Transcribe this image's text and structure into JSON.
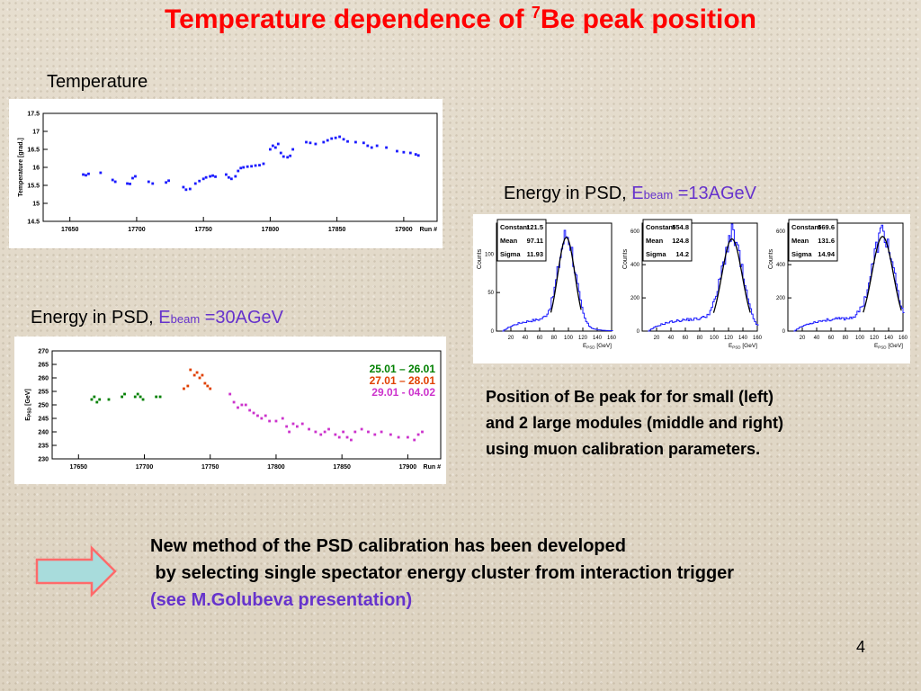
{
  "slide": {
    "title_pre": "Temperature dependence of  ",
    "title_sup": "7",
    "title_post": "Be peak position",
    "page_number": "4"
  },
  "labels": {
    "temperature": "Temperature",
    "psd13_prefix": "Energy in PSD, ",
    "psd13_E": "E",
    "psd13_sub": "beam",
    "psd13_val": " =13AGeV",
    "psd30_prefix": "Energy in PSD, ",
    "psd30_E": "E",
    "psd30_sub": "beam",
    "psd30_val": " =30AGeV"
  },
  "caption": {
    "line1": "Position of Be peak for for  small (left)",
    "line2": "and 2 large modules (middle and right)",
    "line3": "using muon calibration parameters."
  },
  "method": {
    "line1": "New method of the PSD calibration has been developed",
    "line2": " by selecting single spectator energy cluster from interaction trigger",
    "line3": "(see M.Golubeva presentation)"
  },
  "colors": {
    "title": "#ff0000",
    "beam_label": "#6633cc",
    "temp_points": "#1a1aff",
    "series_green": "#008000",
    "series_orange": "#e04000",
    "series_magenta": "#cc33cc",
    "arrow_fill": "#a8dcdc",
    "arrow_stroke": "#ff6a6a"
  },
  "chart_data": [
    {
      "type": "scatter",
      "xlabel": "Run #",
      "ylabel": "Temperature [grad.]",
      "xlim": [
        17630,
        17925
      ],
      "ylim": [
        14.5,
        17.5
      ],
      "xticks": [
        "17650",
        "17700",
        "17750",
        "17800",
        "17850",
        "17900"
      ],
      "yticks": [
        "14.5",
        "15",
        "15.5",
        "16",
        "16.5",
        "17",
        "17.5"
      ],
      "points": [
        [
          17660,
          15.8
        ],
        [
          17662,
          15.78
        ],
        [
          17664,
          15.82
        ],
        [
          17673,
          15.85
        ],
        [
          17682,
          15.65
        ],
        [
          17684,
          15.6
        ],
        [
          17693,
          15.55
        ],
        [
          17695,
          15.54
        ],
        [
          17697,
          15.7
        ],
        [
          17699,
          15.75
        ],
        [
          17709,
          15.6
        ],
        [
          17712,
          15.55
        ],
        [
          17722,
          15.58
        ],
        [
          17724,
          15.63
        ],
        [
          17735,
          15.45
        ],
        [
          17737,
          15.38
        ],
        [
          17740,
          15.4
        ],
        [
          17744,
          15.55
        ],
        [
          17747,
          15.62
        ],
        [
          17750,
          15.68
        ],
        [
          17752,
          15.72
        ],
        [
          17755,
          15.75
        ],
        [
          17757,
          15.77
        ],
        [
          17759,
          15.74
        ],
        [
          17767,
          15.8
        ],
        [
          17769,
          15.72
        ],
        [
          17771,
          15.68
        ],
        [
          17774,
          15.75
        ],
        [
          17776,
          15.9
        ],
        [
          17778,
          15.98
        ],
        [
          17780,
          16.0
        ],
        [
          17783,
          16.02
        ],
        [
          17786,
          16.03
        ],
        [
          17789,
          16.05
        ],
        [
          17792,
          16.06
        ],
        [
          17795,
          16.1
        ],
        [
          17800,
          16.5
        ],
        [
          17802,
          16.6
        ],
        [
          17804,
          16.55
        ],
        [
          17806,
          16.65
        ],
        [
          17808,
          16.4
        ],
        [
          17810,
          16.3
        ],
        [
          17813,
          16.28
        ],
        [
          17815,
          16.32
        ],
        [
          17817,
          16.5
        ],
        [
          17827,
          16.7
        ],
        [
          17830,
          16.68
        ],
        [
          17834,
          16.65
        ],
        [
          17840,
          16.7
        ],
        [
          17843,
          16.75
        ],
        [
          17846,
          16.8
        ],
        [
          17849,
          16.82
        ],
        [
          17852,
          16.85
        ],
        [
          17855,
          16.78
        ],
        [
          17858,
          16.72
        ],
        [
          17864,
          16.7
        ],
        [
          17870,
          16.68
        ],
        [
          17873,
          16.6
        ],
        [
          17876,
          16.55
        ],
        [
          17880,
          16.6
        ],
        [
          17887,
          16.55
        ],
        [
          17895,
          16.45
        ],
        [
          17900,
          16.42
        ],
        [
          17905,
          16.4
        ],
        [
          17909,
          16.36
        ],
        [
          17911,
          16.33
        ]
      ]
    },
    {
      "type": "histogram",
      "xlabel": "E_PSD [GeV]",
      "ylabel": "Counts",
      "xticks": [
        "20",
        "40",
        "60",
        "80",
        "100",
        "120",
        "140",
        "160"
      ],
      "yticks": [
        "0",
        "50",
        "100"
      ],
      "xlim": [
        0,
        160
      ],
      "ylim": [
        0,
        140
      ],
      "stats": [
        [
          "Constant",
          "121.5"
        ],
        [
          "Mean",
          "97.11"
        ],
        [
          "Sigma",
          "11.93"
        ]
      ],
      "peak": 97.11,
      "sigma": 11.93,
      "amplitude": 121.5
    },
    {
      "type": "histogram",
      "xlabel": "E_PSD [GeV]",
      "ylabel": "Counts",
      "xticks": [
        "20",
        "40",
        "60",
        "80",
        "100",
        "120",
        "140",
        "160"
      ],
      "yticks": [
        "0",
        "200",
        "400",
        "600"
      ],
      "xlim": [
        0,
        160
      ],
      "ylim": [
        0,
        650
      ],
      "stats": [
        [
          "Constant",
          "554.8"
        ],
        [
          "Mean",
          "124.8"
        ],
        [
          "Sigma",
          "14.2"
        ]
      ],
      "peak": 124.8,
      "sigma": 14.2,
      "amplitude": 554.8
    },
    {
      "type": "histogram",
      "xlabel": "E_PSD [GeV]",
      "ylabel": "Counts",
      "xticks": [
        "20",
        "40",
        "60",
        "80",
        "100",
        "120",
        "140",
        "160"
      ],
      "yticks": [
        "0",
        "200",
        "400",
        "600"
      ],
      "xlim": [
        0,
        160
      ],
      "ylim": [
        0,
        650
      ],
      "stats": [
        [
          "Constant",
          "569.6"
        ],
        [
          "Mean",
          "131.6"
        ],
        [
          "Sigma",
          "14.94"
        ]
      ],
      "peak": 131.6,
      "sigma": 14.94,
      "amplitude": 569.6
    },
    {
      "type": "scatter",
      "xlabel": "Run #",
      "ylabel": "E_PSD [GeV]",
      "xlim": [
        17630,
        17925
      ],
      "ylim": [
        230,
        270
      ],
      "xticks": [
        "17650",
        "17700",
        "17750",
        "17800",
        "17850",
        "17900"
      ],
      "yticks": [
        "230",
        "235",
        "240",
        "245",
        "250",
        "255",
        "260",
        "265",
        "270"
      ],
      "series": [
        {
          "name": "25.01 – 26.01",
          "color": "#008000",
          "points": [
            [
              17660,
              252
            ],
            [
              17662,
              253
            ],
            [
              17664,
              251
            ],
            [
              17666,
              252
            ],
            [
              17673,
              252
            ],
            [
              17683,
              253
            ],
            [
              17685,
              254
            ],
            [
              17693,
              253
            ],
            [
              17695,
              254
            ],
            [
              17697,
              253
            ],
            [
              17699,
              252
            ],
            [
              17709,
              253
            ],
            [
              17712,
              253
            ]
          ]
        },
        {
          "name": "27.01 – 28.01",
          "color": "#e04000",
          "points": [
            [
              17730,
              256
            ],
            [
              17733,
              257
            ],
            [
              17735,
              263
            ],
            [
              17738,
              261
            ],
            [
              17740,
              262
            ],
            [
              17742,
              260
            ],
            [
              17744,
              261
            ],
            [
              17746,
              258
            ],
            [
              17748,
              257
            ],
            [
              17750,
              256
            ]
          ]
        },
        {
          "name": "29.01  - 04.02",
          "color": "#cc33cc",
          "points": [
            [
              17765,
              254
            ],
            [
              17768,
              251
            ],
            [
              17771,
              249
            ],
            [
              17774,
              250
            ],
            [
              17777,
              250
            ],
            [
              17780,
              248
            ],
            [
              17783,
              247
            ],
            [
              17786,
              246
            ],
            [
              17789,
              245
            ],
            [
              17792,
              246
            ],
            [
              17795,
              244
            ],
            [
              17800,
              244
            ],
            [
              17805,
              245
            ],
            [
              17808,
              242
            ],
            [
              17810,
              240
            ],
            [
              17813,
              243
            ],
            [
              17816,
              242
            ],
            [
              17820,
              243
            ],
            [
              17825,
              241
            ],
            [
              17830,
              240
            ],
            [
              17834,
              239
            ],
            [
              17837,
              240
            ],
            [
              17840,
              241
            ],
            [
              17845,
              239
            ],
            [
              17848,
              238
            ],
            [
              17851,
              240
            ],
            [
              17854,
              238
            ],
            [
              17857,
              237
            ],
            [
              17860,
              240
            ],
            [
              17865,
              241
            ],
            [
              17870,
              240
            ],
            [
              17875,
              239
            ],
            [
              17880,
              240
            ],
            [
              17887,
              239
            ],
            [
              17893,
              238
            ],
            [
              17900,
              238
            ],
            [
              17905,
              237
            ],
            [
              17908,
              239
            ],
            [
              17911,
              240
            ]
          ]
        }
      ]
    }
  ]
}
